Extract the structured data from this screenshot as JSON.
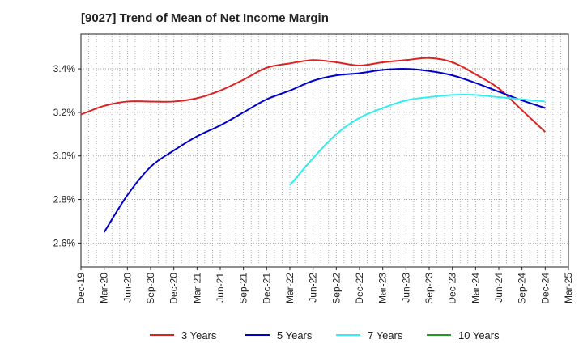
{
  "header": {
    "title": "[9027]  Trend of Mean of Net Income Margin"
  },
  "chart_data": {
    "type": "line",
    "title": "[9027]  Trend of Mean of Net Income Margin",
    "xlabel": "",
    "ylabel": "",
    "ylim": [
      2.49,
      3.56
    ],
    "y_ticks": [
      2.6,
      2.8,
      3.0,
      3.2,
      3.4
    ],
    "y_tick_labels": [
      "2.6%",
      "2.8%",
      "3.0%",
      "3.2%",
      "3.4%"
    ],
    "x_tick_labels": [
      "Dec-19",
      "Mar-20",
      "Jun-20",
      "Sep-20",
      "Dec-20",
      "Mar-21",
      "Jun-21",
      "Sep-21",
      "Dec-21",
      "Mar-22",
      "Jun-22",
      "Sep-22",
      "Dec-22",
      "Mar-23",
      "Jun-23",
      "Sep-23",
      "Dec-23",
      "Mar-24",
      "Jun-24",
      "Sep-24",
      "Dec-24",
      "Mar-25"
    ],
    "grid": true,
    "legend_position": "bottom",
    "series": [
      {
        "name": "3 Years",
        "color": "#dd2222",
        "points": [
          [
            0,
            3.19
          ],
          [
            1,
            3.23
          ],
          [
            2,
            3.25
          ],
          [
            3,
            3.25
          ],
          [
            4,
            3.25
          ],
          [
            5,
            3.265
          ],
          [
            6,
            3.3
          ],
          [
            7,
            3.35
          ],
          [
            8,
            3.405
          ],
          [
            9,
            3.425
          ],
          [
            10,
            3.44
          ],
          [
            11,
            3.43
          ],
          [
            12,
            3.415
          ],
          [
            13,
            3.43
          ],
          [
            14,
            3.44
          ],
          [
            15,
            3.45
          ],
          [
            16,
            3.43
          ],
          [
            17,
            3.375
          ],
          [
            18,
            3.31
          ],
          [
            19,
            3.21
          ],
          [
            20,
            3.11
          ]
        ]
      },
      {
        "name": "5 Years",
        "color": "#0000cc",
        "points": [
          [
            1,
            2.65
          ],
          [
            2,
            2.82
          ],
          [
            3,
            2.95
          ],
          [
            4,
            3.025
          ],
          [
            5,
            3.09
          ],
          [
            6,
            3.14
          ],
          [
            7,
            3.2
          ],
          [
            8,
            3.26
          ],
          [
            9,
            3.3
          ],
          [
            10,
            3.345
          ],
          [
            11,
            3.37
          ],
          [
            12,
            3.38
          ],
          [
            13,
            3.395
          ],
          [
            14,
            3.4
          ],
          [
            15,
            3.39
          ],
          [
            16,
            3.37
          ],
          [
            17,
            3.335
          ],
          [
            18,
            3.295
          ],
          [
            19,
            3.255
          ],
          [
            20,
            3.22
          ]
        ]
      },
      {
        "name": "7 Years",
        "color": "#33eeee",
        "points": [
          [
            9,
            2.865
          ],
          [
            10,
            2.99
          ],
          [
            11,
            3.1
          ],
          [
            12,
            3.175
          ],
          [
            13,
            3.22
          ],
          [
            14,
            3.255
          ],
          [
            15,
            3.27
          ],
          [
            16,
            3.28
          ],
          [
            17,
            3.28
          ],
          [
            18,
            3.27
          ],
          [
            19,
            3.26
          ],
          [
            20,
            3.25
          ]
        ]
      },
      {
        "name": "10 Years",
        "color": "#229922",
        "points": []
      }
    ]
  }
}
